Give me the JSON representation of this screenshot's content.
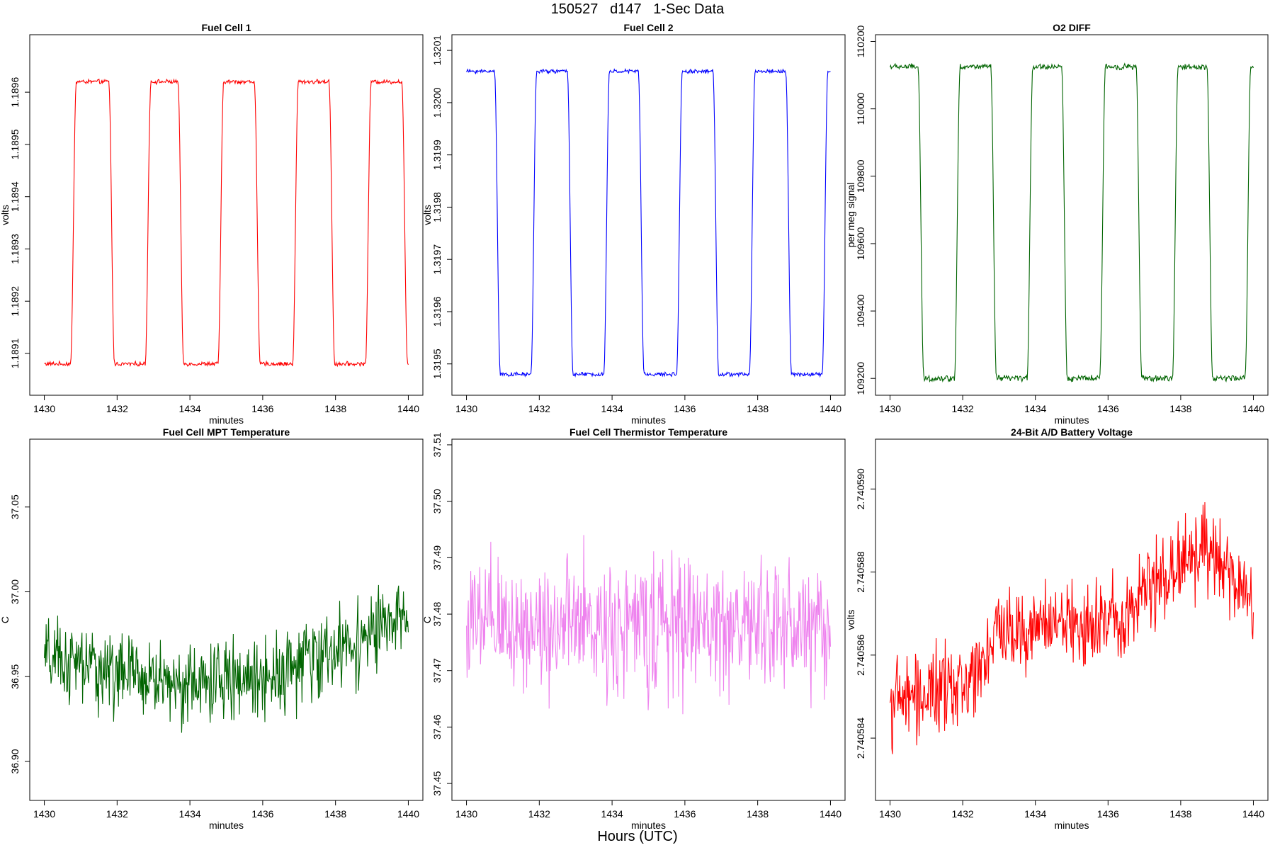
{
  "page": {
    "title": "150527   d147   1-Sec Data",
    "bottom_label": "Hours (UTC)"
  },
  "chart_data": [
    {
      "type": "line",
      "title": "Fuel Cell 1",
      "xlabel": "minutes",
      "ylabel": "volts",
      "color": "#ff0000",
      "xlim": [
        1429.6,
        1440.4
      ],
      "ylim": [
        1.18902,
        1.18971
      ],
      "xticks": [
        "1430",
        "1432",
        "1434",
        "1436",
        "1438",
        "1440"
      ],
      "yticks": [
        "1.1891",
        "1.1892",
        "1.1893",
        "1.1894",
        "1.1895",
        "1.1896"
      ],
      "ytick_values": [
        1.1891,
        1.1892,
        1.1893,
        1.1894,
        1.1895,
        1.1896
      ],
      "levels": {
        "low": 1.18908,
        "high": 1.18962
      },
      "transitions": [
        [
          1430.8,
          "up"
        ],
        [
          1431.85,
          "down"
        ],
        [
          1432.85,
          "up"
        ],
        [
          1433.75,
          "down"
        ],
        [
          1434.85,
          "up"
        ],
        [
          1435.85,
          "down"
        ],
        [
          1436.9,
          "up"
        ],
        [
          1437.9,
          "down"
        ],
        [
          1438.9,
          "up"
        ],
        [
          1439.9,
          "down"
        ]
      ],
      "start_level": "low",
      "noise": 3.3e-06,
      "points": 560
    },
    {
      "type": "line",
      "title": "Fuel Cell 2",
      "xlabel": "minutes",
      "ylabel": "volts",
      "color": "#0000ff",
      "xlim": [
        1429.6,
        1440.4
      ],
      "ylim": [
        1.31944,
        1.32013
      ],
      "xticks": [
        "1430",
        "1432",
        "1434",
        "1436",
        "1438",
        "1440"
      ],
      "yticks": [
        "1.3195",
        "1.3196",
        "1.3197",
        "1.3198",
        "1.3199",
        "1.3200",
        "1.3201"
      ],
      "ytick_values": [
        1.3195,
        1.3196,
        1.3197,
        1.3198,
        1.3199,
        1.32,
        1.3201
      ],
      "levels": {
        "low": 1.31948,
        "high": 1.32006
      },
      "transitions": [
        [
          1430.85,
          "down"
        ],
        [
          1431.85,
          "up"
        ],
        [
          1432.85,
          "down"
        ],
        [
          1433.85,
          "up"
        ],
        [
          1434.8,
          "down"
        ],
        [
          1435.85,
          "up"
        ],
        [
          1436.85,
          "down"
        ],
        [
          1437.85,
          "up"
        ],
        [
          1438.85,
          "down"
        ],
        [
          1439.85,
          "up"
        ]
      ],
      "start_level": "high",
      "noise": 3e-06,
      "points": 560
    },
    {
      "type": "line",
      "title": "O2 DIFF",
      "xlabel": "minutes",
      "ylabel": "per meg signal",
      "color": "#006400",
      "xlim": [
        1429.6,
        1440.4
      ],
      "ylim": [
        109150,
        110220
      ],
      "xticks": [
        "1430",
        "1432",
        "1434",
        "1436",
        "1438",
        "1440"
      ],
      "yticks": [
        "109200",
        "109400",
        "109600",
        "109800",
        "110000",
        "110200"
      ],
      "ytick_values": [
        109200,
        109400,
        109600,
        109800,
        110000,
        110200
      ],
      "levels": {
        "low": 109200,
        "high": 110125
      },
      "transitions": [
        [
          1430.85,
          "down"
        ],
        [
          1431.85,
          "up"
        ],
        [
          1432.85,
          "down"
        ],
        [
          1433.85,
          "up"
        ],
        [
          1434.8,
          "down"
        ],
        [
          1435.85,
          "up"
        ],
        [
          1436.85,
          "down"
        ],
        [
          1437.85,
          "up"
        ],
        [
          1438.8,
          "down"
        ],
        [
          1439.85,
          "up"
        ]
      ],
      "start_level": "high",
      "noise": 7,
      "points": 560
    },
    {
      "type": "line",
      "title": "Fuel Cell MPT Temperature",
      "xlabel": "minutes",
      "ylabel": "C",
      "color": "#006400",
      "xlim": [
        1429.6,
        1440.4
      ],
      "ylim": [
        36.877,
        37.09
      ],
      "xticks": [
        "1430",
        "1432",
        "1434",
        "1436",
        "1438",
        "1440"
      ],
      "yticks": [
        "36.90",
        "36.95",
        "37.00",
        "37.05"
      ],
      "ytick_values": [
        36.9,
        36.95,
        37.0,
        37.05
      ],
      "baseline": [
        [
          1430,
          36.96
        ],
        [
          1434,
          36.945
        ],
        [
          1436,
          36.95
        ],
        [
          1438,
          36.965
        ],
        [
          1440,
          36.985
        ]
      ],
      "noise": 0.022,
      "points": 600
    },
    {
      "type": "line",
      "title": "Fuel Cell Thermistor Temperature",
      "xlabel": "minutes",
      "ylabel": "C",
      "color": "#ee82ee",
      "xlim": [
        1429.6,
        1440.4
      ],
      "ylim": [
        37.447,
        37.511
      ],
      "xticks": [
        "1430",
        "1432",
        "1434",
        "1436",
        "1438",
        "1440"
      ],
      "yticks": [
        "37.45",
        "37.46",
        "37.47",
        "37.48",
        "37.49",
        "37.50",
        "37.51"
      ],
      "ytick_values": [
        37.45,
        37.46,
        37.47,
        37.48,
        37.49,
        37.5,
        37.51
      ],
      "baseline": [
        [
          1430,
          37.478
        ],
        [
          1440,
          37.478
        ]
      ],
      "noise": 0.011,
      "points": 600
    },
    {
      "type": "line",
      "title": "24-Bit A/D Battery Voltage",
      "xlabel": "minutes",
      "ylabel": "volts",
      "color": "#ff0000",
      "xlim": [
        1429.6,
        1440.4
      ],
      "ylim": [
        2.7405825,
        2.7405912
      ],
      "xticks": [
        "1430",
        "1432",
        "1434",
        "1436",
        "1438",
        "1440"
      ],
      "yticks": [
        "2.740584",
        "2.740586",
        "2.740588",
        "2.740590"
      ],
      "ytick_values": [
        2.740584,
        2.740586,
        2.740588,
        2.74059
      ],
      "baseline": [
        [
          1430,
          2.7405849
        ],
        [
          1432,
          2.7405852
        ],
        [
          1433,
          2.7405866
        ],
        [
          1436,
          2.7405868
        ],
        [
          1438.5,
          2.7405886
        ],
        [
          1440,
          2.7405873
        ]
      ],
      "noise": 9.5e-07,
      "points": 600
    }
  ]
}
